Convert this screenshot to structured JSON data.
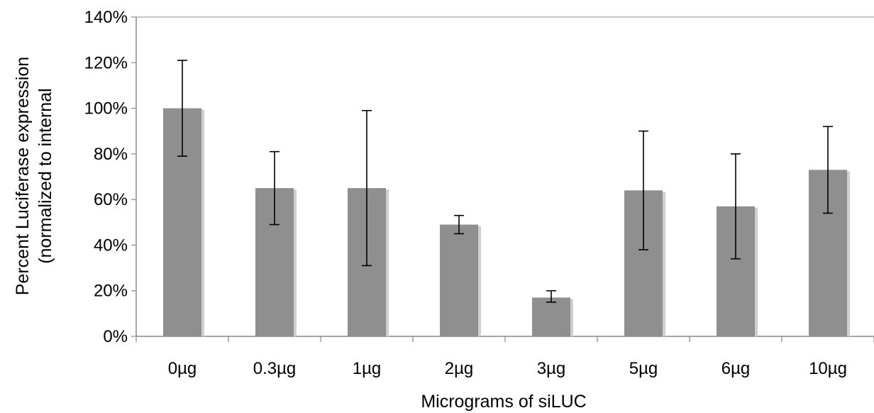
{
  "chart_data": {
    "type": "bar",
    "title": "",
    "xlabel": "Micrograms of siLUC",
    "ylabel_lines": [
      "Percent Luciferase expression",
      "(normalized to internal"
    ],
    "categories": [
      "0µg",
      "0.3µg",
      "1µg",
      "2µg",
      "3µg",
      "5µg",
      "6µg",
      "10µg"
    ],
    "series": [
      {
        "values": [
          100,
          65,
          65,
          49,
          17,
          64,
          57,
          73
        ],
        "error_low": [
          79,
          49,
          31,
          45,
          15,
          38,
          34,
          54
        ],
        "error_high": [
          121,
          81,
          99,
          53,
          20,
          90,
          80,
          92
        ]
      }
    ],
    "ylim": [
      0,
      140
    ],
    "yticks": [
      0,
      20,
      40,
      60,
      80,
      100,
      120,
      140
    ],
    "ytick_labels": [
      "0%",
      "20%",
      "40%",
      "60%",
      "80%",
      "100%",
      "120%",
      "140%"
    ],
    "grid": false,
    "legend": "none",
    "colors": {
      "bar": "#8f8f8f",
      "bar_shadow": "#cfcfcf",
      "axis": "#888888",
      "error": "#000000"
    }
  }
}
